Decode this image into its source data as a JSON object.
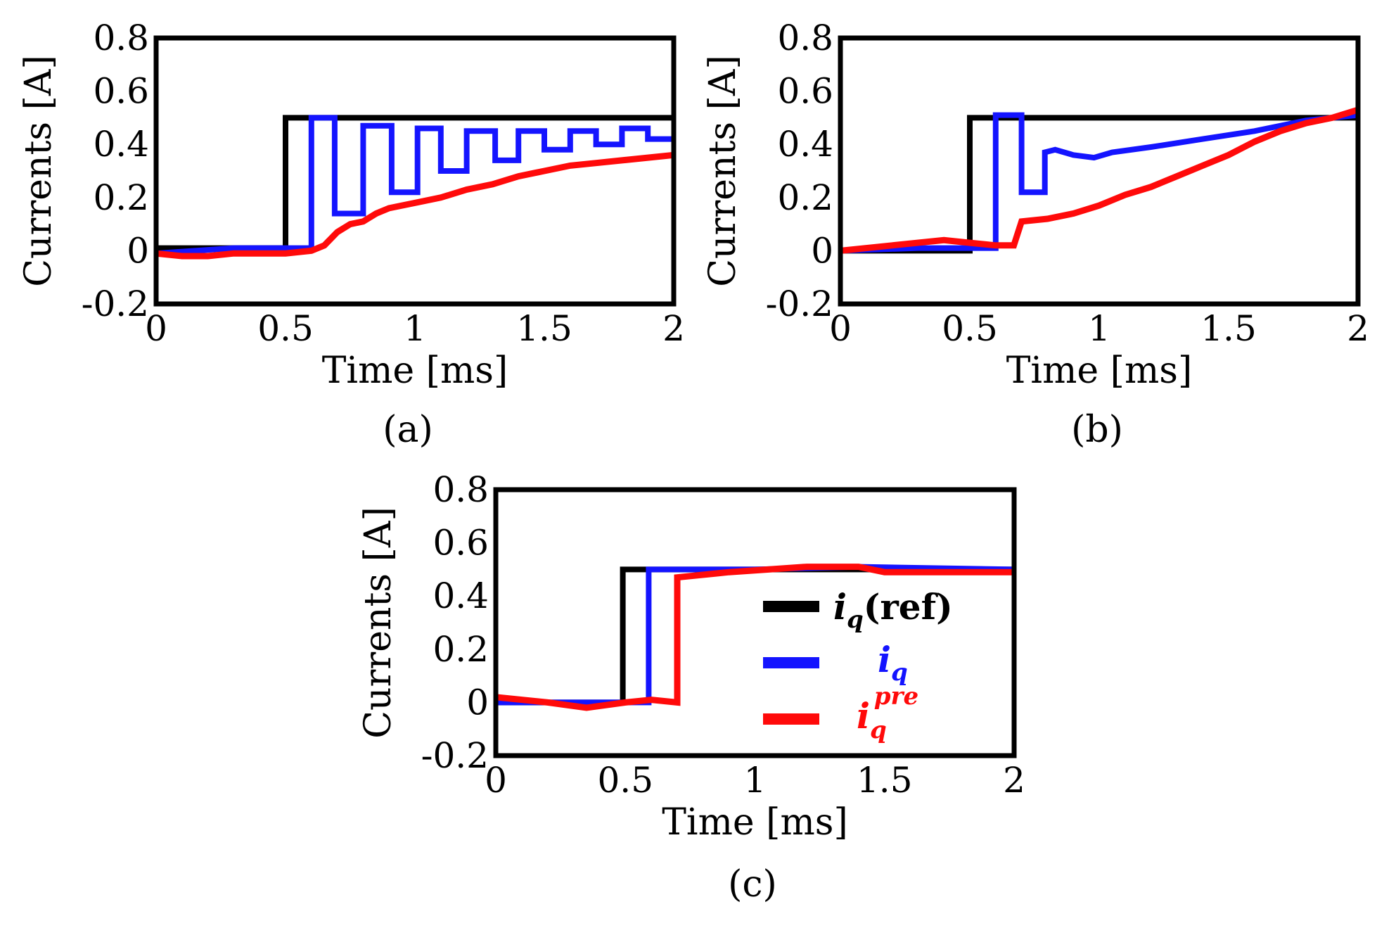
{
  "figure": {
    "panels": [
      "(a)",
      "(b)",
      "(c)"
    ]
  },
  "colors": {
    "ref": "#000000",
    "iq": "#1414ff",
    "pre": "#ff0a0a",
    "frame": "#000000"
  },
  "chart_data": [
    {
      "type": "line",
      "caption": "(a)",
      "xlabel": "Time [ms]",
      "ylabel": "Currents [A]",
      "xlim": [
        0,
        2
      ],
      "ylim": [
        -0.2,
        0.8
      ],
      "xticks": [
        "0",
        "0.5",
        "1",
        "1.5",
        "2"
      ],
      "yticks": [
        "-0.2",
        "0",
        "0.2",
        "0.4",
        "0.6",
        "0.8"
      ],
      "legend": false,
      "series": [
        {
          "name": "i_q(ref)",
          "color": "ref",
          "x": [
            0,
            0.5,
            0.5,
            2
          ],
          "y": [
            0.01,
            0.01,
            0.5,
            0.5
          ]
        },
        {
          "name": "i_q",
          "color": "iq",
          "x": [
            0,
            0.3,
            0.6,
            0.6,
            0.69,
            0.69,
            0.8,
            0.8,
            0.91,
            0.91,
            1.01,
            1.01,
            1.1,
            1.1,
            1.2,
            1.2,
            1.31,
            1.31,
            1.4,
            1.4,
            1.5,
            1.5,
            1.6,
            1.6,
            1.7,
            1.7,
            1.8,
            1.8,
            1.9,
            1.9,
            2.0
          ],
          "y": [
            -0.01,
            0.01,
            0.01,
            0.5,
            0.5,
            0.14,
            0.14,
            0.47,
            0.47,
            0.22,
            0.22,
            0.46,
            0.46,
            0.3,
            0.3,
            0.45,
            0.45,
            0.34,
            0.34,
            0.45,
            0.45,
            0.38,
            0.38,
            0.45,
            0.45,
            0.4,
            0.4,
            0.46,
            0.46,
            0.42,
            0.42
          ]
        },
        {
          "name": "i_q^pre",
          "color": "pre",
          "x": [
            0,
            0.1,
            0.2,
            0.3,
            0.4,
            0.5,
            0.6,
            0.65,
            0.7,
            0.75,
            0.8,
            0.85,
            0.9,
            0.95,
            1.0,
            1.1,
            1.2,
            1.3,
            1.4,
            1.5,
            1.6,
            1.7,
            1.8,
            1.9,
            2.0
          ],
          "y": [
            -0.01,
            -0.02,
            -0.02,
            -0.01,
            -0.01,
            -0.01,
            0.0,
            0.02,
            0.07,
            0.1,
            0.11,
            0.14,
            0.16,
            0.17,
            0.18,
            0.2,
            0.23,
            0.25,
            0.28,
            0.3,
            0.32,
            0.33,
            0.34,
            0.35,
            0.36
          ]
        }
      ]
    },
    {
      "type": "line",
      "caption": "(b)",
      "xlabel": "Time [ms]",
      "ylabel": "Currents [A]",
      "xlim": [
        0,
        2
      ],
      "ylim": [
        -0.2,
        0.8
      ],
      "xticks": [
        "0",
        "0.5",
        "1",
        "1.5",
        "2"
      ],
      "yticks": [
        "-0.2",
        "0",
        "0.2",
        "0.4",
        "0.6",
        "0.8"
      ],
      "legend": false,
      "series": [
        {
          "name": "i_q(ref)",
          "color": "ref",
          "x": [
            0,
            0.5,
            0.5,
            2
          ],
          "y": [
            0.0,
            0.0,
            0.5,
            0.5
          ]
        },
        {
          "name": "i_q",
          "color": "iq",
          "x": [
            0,
            0.3,
            0.6,
            0.6,
            0.7,
            0.7,
            0.79,
            0.79,
            0.83,
            0.9,
            0.98,
            1.05,
            1.2,
            1.4,
            1.6,
            1.8,
            2.0
          ],
          "y": [
            0.0,
            0.01,
            0.01,
            0.51,
            0.51,
            0.22,
            0.22,
            0.37,
            0.38,
            0.36,
            0.35,
            0.37,
            0.39,
            0.42,
            0.45,
            0.49,
            0.51
          ]
        },
        {
          "name": "i_q^pre",
          "color": "pre",
          "x": [
            0,
            0.2,
            0.4,
            0.5,
            0.6,
            0.67,
            0.7,
            0.8,
            0.9,
            1.0,
            1.1,
            1.2,
            1.3,
            1.4,
            1.5,
            1.6,
            1.7,
            1.8,
            1.9,
            2.0
          ],
          "y": [
            0.0,
            0.02,
            0.04,
            0.03,
            0.02,
            0.02,
            0.11,
            0.12,
            0.14,
            0.17,
            0.21,
            0.24,
            0.28,
            0.32,
            0.36,
            0.41,
            0.45,
            0.48,
            0.5,
            0.53
          ]
        }
      ]
    },
    {
      "type": "line",
      "caption": "(c)",
      "xlabel": "Time [ms]",
      "ylabel": "Currents [A]",
      "xlim": [
        0,
        2
      ],
      "ylim": [
        -0.2,
        0.8
      ],
      "xticks": [
        "0",
        "0.5",
        "1",
        "1.5",
        "2"
      ],
      "yticks": [
        "-0.2",
        "0",
        "0.2",
        "0.4",
        "0.6",
        "0.8"
      ],
      "legend": true,
      "legend_position": "center-right",
      "series": [
        {
          "name": "i_q(ref)",
          "color": "ref",
          "x": [
            0,
            0.49,
            0.49,
            2
          ],
          "y": [
            0.0,
            0.0,
            0.5,
            0.5
          ]
        },
        {
          "name": "i_q",
          "color": "iq",
          "x": [
            0,
            0.59,
            0.59,
            1.0,
            1.4,
            2.0
          ],
          "y": [
            0.0,
            0.0,
            0.5,
            0.5,
            0.51,
            0.5
          ]
        },
        {
          "name": "i_q^pre",
          "color": "pre",
          "x": [
            0,
            0.2,
            0.35,
            0.5,
            0.6,
            0.7,
            0.7,
            0.9,
            1.2,
            1.4,
            1.5,
            2.0
          ],
          "y": [
            0.02,
            0.0,
            -0.02,
            0.0,
            0.01,
            0.0,
            0.47,
            0.49,
            0.51,
            0.51,
            0.49,
            0.49
          ]
        }
      ]
    }
  ],
  "legend": {
    "ref": {
      "main": "i",
      "sub": "q",
      "tail": "(ref)"
    },
    "iq": {
      "main": "i",
      "sub": "q"
    },
    "pre": {
      "main": "i",
      "sub": "q",
      "sup": "pre"
    }
  }
}
